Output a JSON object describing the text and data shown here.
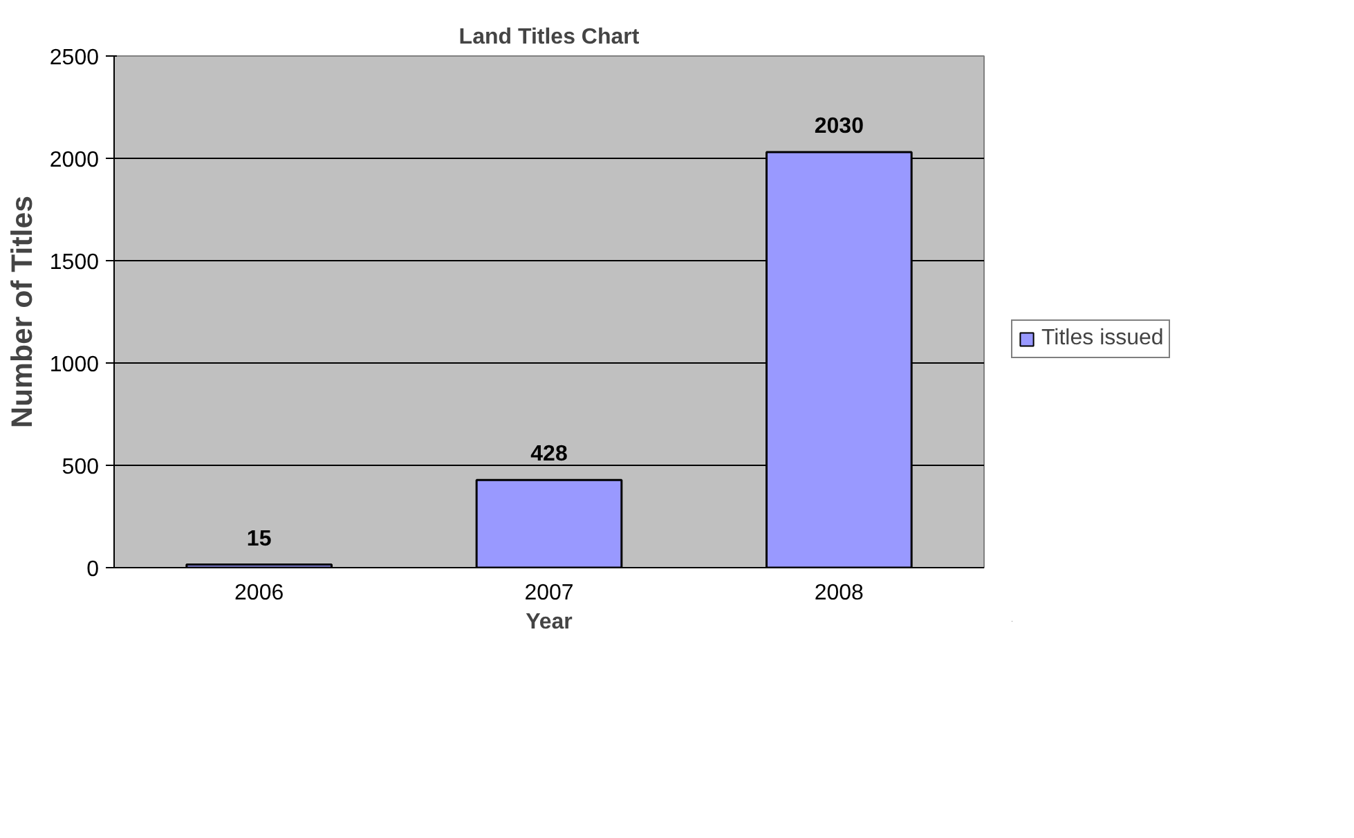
{
  "chart_data": {
    "type": "bar",
    "title": "Land Titles Chart",
    "xlabel": "Year",
    "ylabel": "Number of Titles",
    "categories": [
      "2006",
      "2007",
      "2008"
    ],
    "series": [
      {
        "name": "Titles issued",
        "color": "#9999ff",
        "values": [
          15,
          428,
          2030
        ]
      }
    ],
    "ylim": [
      0,
      2500
    ],
    "yticks": [
      0,
      500,
      1000,
      1500,
      2000,
      2500
    ],
    "grid": "y",
    "legend": "right",
    "data_labels": true
  }
}
